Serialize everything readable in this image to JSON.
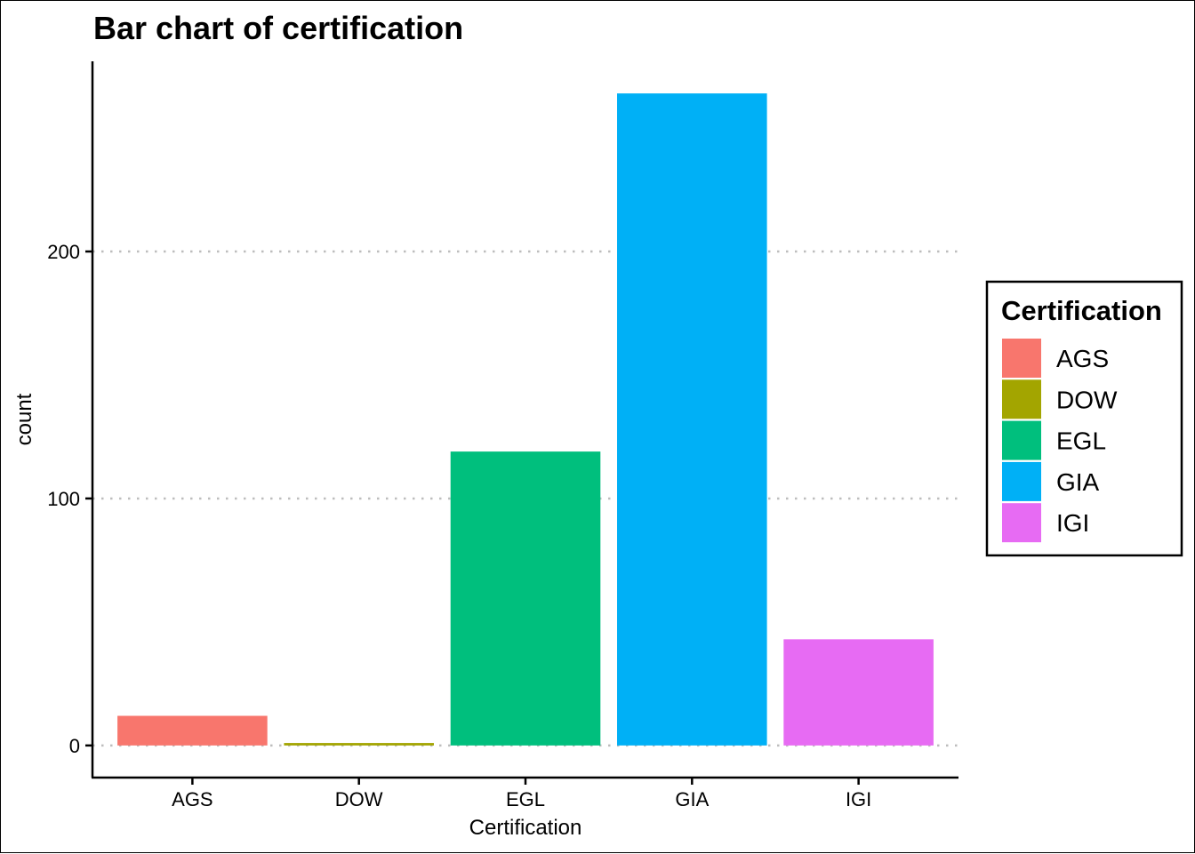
{
  "chart_data": {
    "type": "bar",
    "title": "Bar chart of certification",
    "xlabel": "Certification",
    "ylabel": "count",
    "categories": [
      "AGS",
      "DOW",
      "EGL",
      "GIA",
      "IGI"
    ],
    "values": [
      12,
      1,
      119,
      264,
      43
    ],
    "colors": [
      "#F8766D",
      "#A3A500",
      "#00BF7D",
      "#00B0F6",
      "#E76BF3"
    ],
    "ylim": [
      -13,
      277
    ],
    "yticks": [
      0,
      100,
      200
    ],
    "grid": "horizontal dotted",
    "legend": {
      "title": "Certification",
      "position": "right",
      "entries": [
        "AGS",
        "DOW",
        "EGL",
        "GIA",
        "IGI"
      ]
    }
  }
}
